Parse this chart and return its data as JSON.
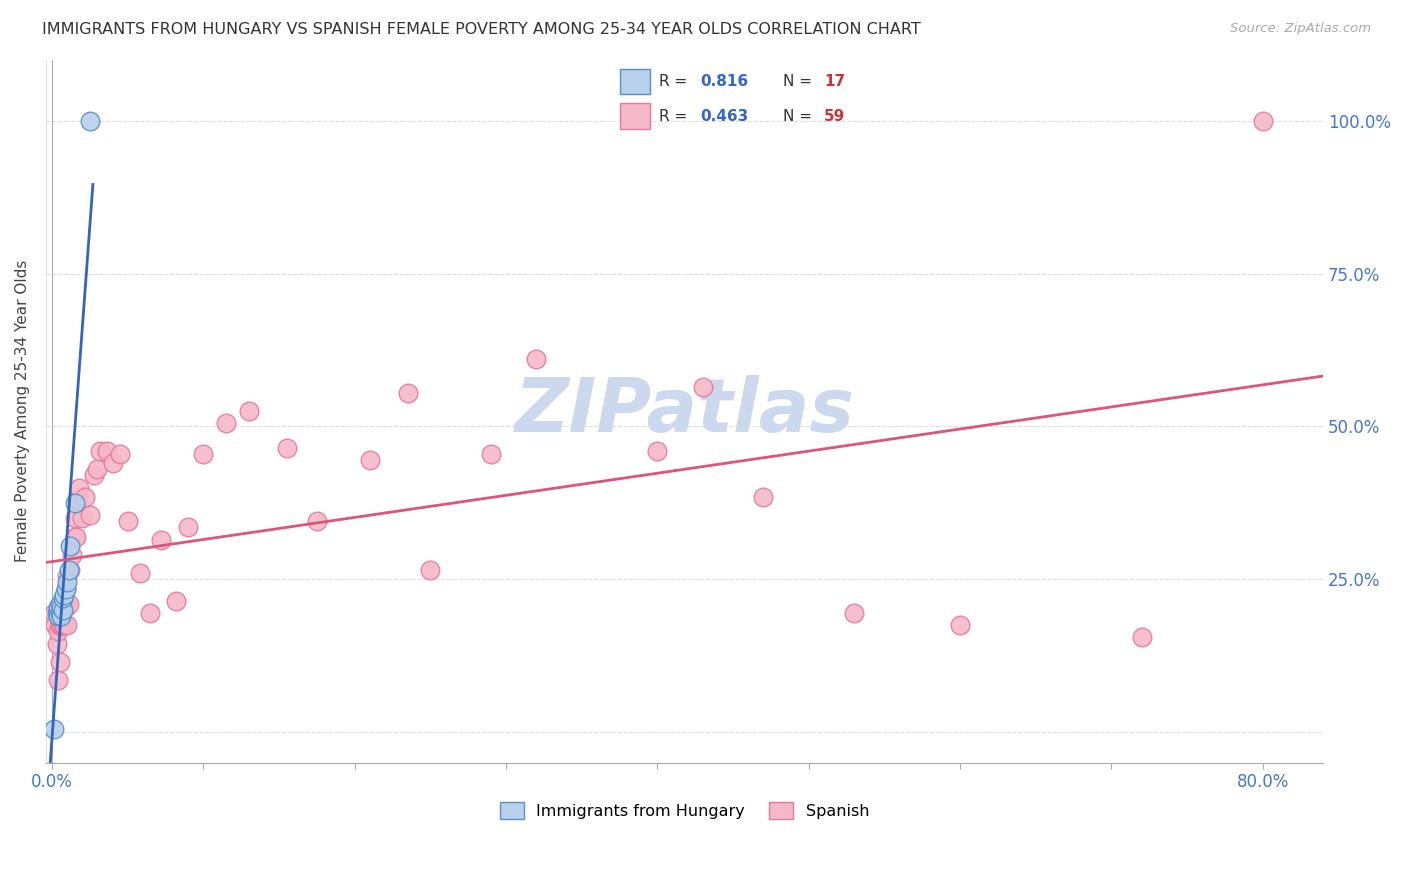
{
  "title": "IMMIGRANTS FROM HUNGARY VS SPANISH FEMALE POVERTY AMONG 25-34 YEAR OLDS CORRELATION CHART",
  "source": "Source: ZipAtlas.com",
  "ylabel": "Female Poverty Among 25-34 Year Olds",
  "xlim": [
    -0.004,
    0.84
  ],
  "ylim": [
    -0.05,
    1.1
  ],
  "background_color": "#ffffff",
  "grid_color": "#dddddd",
  "hungary_fill": "#b8d0ea",
  "spanish_fill": "#f5b8c8",
  "hungary_edge": "#5590cc",
  "spanish_edge": "#e8789a",
  "hungary_line_color": "#3366bb",
  "spanish_line_color": "#dd5577",
  "legend_R_color": "#3366cc",
  "legend_N_color": "#cc3333",
  "watermark": "ZIPatlas",
  "watermark_color": "#ccd8ee",
  "hungary_R": "0.816",
  "hungary_N": "17",
  "spanish_R": "0.463",
  "spanish_N": "59",
  "hungary_scatter_x": [
    0.001,
    0.003,
    0.004,
    0.004,
    0.005,
    0.005,
    0.006,
    0.006,
    0.007,
    0.007,
    0.008,
    0.009,
    0.01,
    0.011,
    0.012,
    0.015,
    0.025
  ],
  "hungary_scatter_y": [
    0.005,
    0.195,
    0.19,
    0.205,
    0.195,
    0.21,
    0.19,
    0.205,
    0.2,
    0.22,
    0.225,
    0.235,
    0.245,
    0.265,
    0.305,
    0.375,
    1.0
  ],
  "spanish_scatter_x": [
    0.001,
    0.002,
    0.003,
    0.004,
    0.004,
    0.005,
    0.005,
    0.005,
    0.006,
    0.006,
    0.006,
    0.007,
    0.007,
    0.008,
    0.008,
    0.009,
    0.009,
    0.01,
    0.01,
    0.011,
    0.012,
    0.013,
    0.015,
    0.015,
    0.016,
    0.017,
    0.018,
    0.02,
    0.022,
    0.025,
    0.028,
    0.03,
    0.032,
    0.036,
    0.04,
    0.045,
    0.05,
    0.058,
    0.065,
    0.072,
    0.082,
    0.09,
    0.1,
    0.115,
    0.13,
    0.155,
    0.175,
    0.21,
    0.235,
    0.25,
    0.29,
    0.32,
    0.4,
    0.43,
    0.47,
    0.53,
    0.6,
    0.72,
    0.8
  ],
  "spanish_scatter_y": [
    0.195,
    0.175,
    0.145,
    0.085,
    0.165,
    0.115,
    0.175,
    0.175,
    0.175,
    0.195,
    0.175,
    0.21,
    0.175,
    0.22,
    0.175,
    0.205,
    0.235,
    0.255,
    0.175,
    0.21,
    0.265,
    0.29,
    0.32,
    0.35,
    0.32,
    0.38,
    0.4,
    0.35,
    0.385,
    0.355,
    0.42,
    0.43,
    0.46,
    0.46,
    0.44,
    0.455,
    0.345,
    0.26,
    0.195,
    0.315,
    0.215,
    0.335,
    0.455,
    0.505,
    0.525,
    0.465,
    0.345,
    0.445,
    0.555,
    0.265,
    0.455,
    0.61,
    0.46,
    0.565,
    0.385,
    0.195,
    0.175,
    0.155,
    1.0
  ],
  "x_tick_positions": [
    0.0,
    0.1,
    0.2,
    0.3,
    0.4,
    0.5,
    0.6,
    0.7,
    0.8
  ],
  "y_tick_positions": [
    0.0,
    0.25,
    0.5,
    0.75,
    1.0
  ]
}
